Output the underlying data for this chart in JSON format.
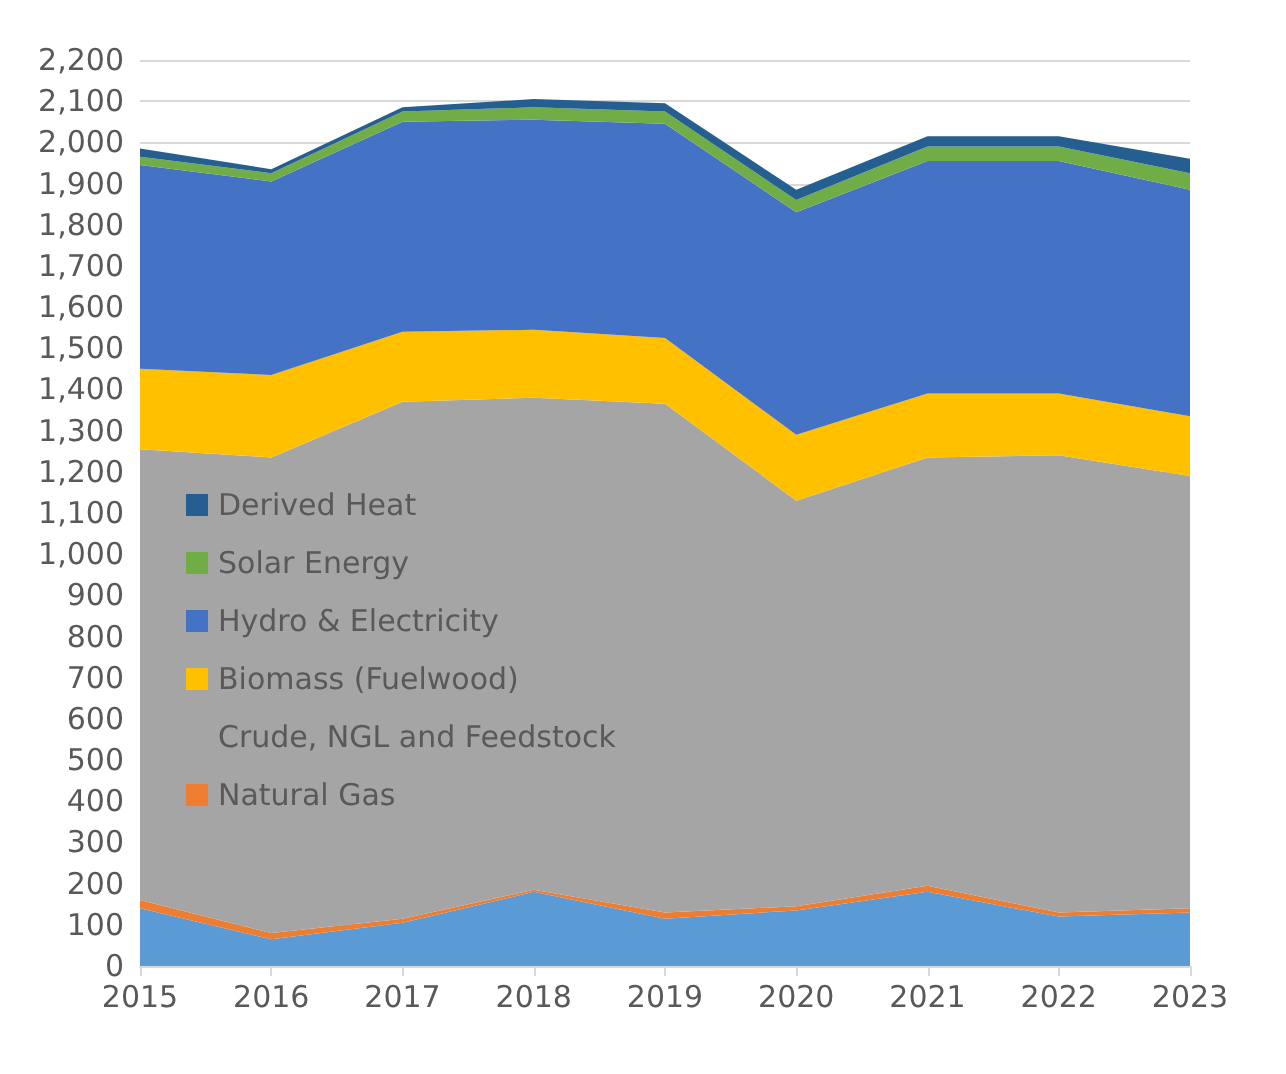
{
  "chart_data": {
    "type": "area",
    "stacked": true,
    "categories": [
      "2015",
      "2016",
      "2017",
      "2018",
      "2019",
      "2020",
      "2021",
      "2022",
      "2023"
    ],
    "series": [
      {
        "color": "#5b9bd5",
        "values": [
          140,
          65,
          105,
          180,
          115,
          135,
          180,
          120,
          130
        ]
      },
      {
        "name": "Natural Gas",
        "color": "#ed7d31",
        "values": [
          20,
          15,
          10,
          5,
          15,
          10,
          15,
          10,
          10
        ]
      },
      {
        "name": "Crude, NGL and Feedstock",
        "color": "#a5a5a5",
        "values": [
          1095,
          1155,
          1255,
          1195,
          1235,
          985,
          1040,
          1110,
          1050
        ]
      },
      {
        "name": "Biomass (Fuelwood)",
        "color": "#ffc000",
        "values": [
          195,
          200,
          170,
          165,
          160,
          160,
          155,
          150,
          145
        ]
      },
      {
        "name": "Hydro & Electricity",
        "color": "#4472c4",
        "values": [
          495,
          470,
          510,
          510,
          520,
          540,
          565,
          565,
          550
        ]
      },
      {
        "name": "Solar Energy",
        "color": "#70ad47",
        "values": [
          20,
          20,
          25,
          30,
          30,
          30,
          35,
          35,
          40
        ]
      },
      {
        "name": "Derived Heat",
        "color": "#255e91",
        "values": [
          20,
          10,
          10,
          20,
          20,
          25,
          25,
          25,
          35
        ]
      }
    ],
    "ylim": [
      0,
      2200
    ],
    "yticks": [
      {
        "value": 0,
        "label": "0"
      },
      {
        "value": 100,
        "label": "100"
      },
      {
        "value": 200,
        "label": "200"
      },
      {
        "value": 300,
        "label": "300"
      },
      {
        "value": 400,
        "label": "400"
      },
      {
        "value": 500,
        "label": "500"
      },
      {
        "value": 600,
        "label": "600"
      },
      {
        "value": 700,
        "label": "700"
      },
      {
        "value": 800,
        "label": "800"
      },
      {
        "value": 900,
        "label": "900"
      },
      {
        "value": 1000,
        "label": "1,000"
      },
      {
        "value": 1100,
        "label": "1,100"
      },
      {
        "value": 1200,
        "label": "1,200"
      },
      {
        "value": 1300,
        "label": "1,300"
      },
      {
        "value": 1400,
        "label": "1,400"
      },
      {
        "value": 1500,
        "label": "1,500"
      },
      {
        "value": 1600,
        "label": "1,600"
      },
      {
        "value": 1700,
        "label": "1,700"
      },
      {
        "value": 1800,
        "label": "1,800"
      },
      {
        "value": 1900,
        "label": "1,900"
      },
      {
        "value": 2000,
        "label": "2,000"
      },
      {
        "value": 2100,
        "label": "2,100"
      },
      {
        "value": 2200,
        "label": "2,200"
      }
    ],
    "grid": "y",
    "legend": "left"
  }
}
